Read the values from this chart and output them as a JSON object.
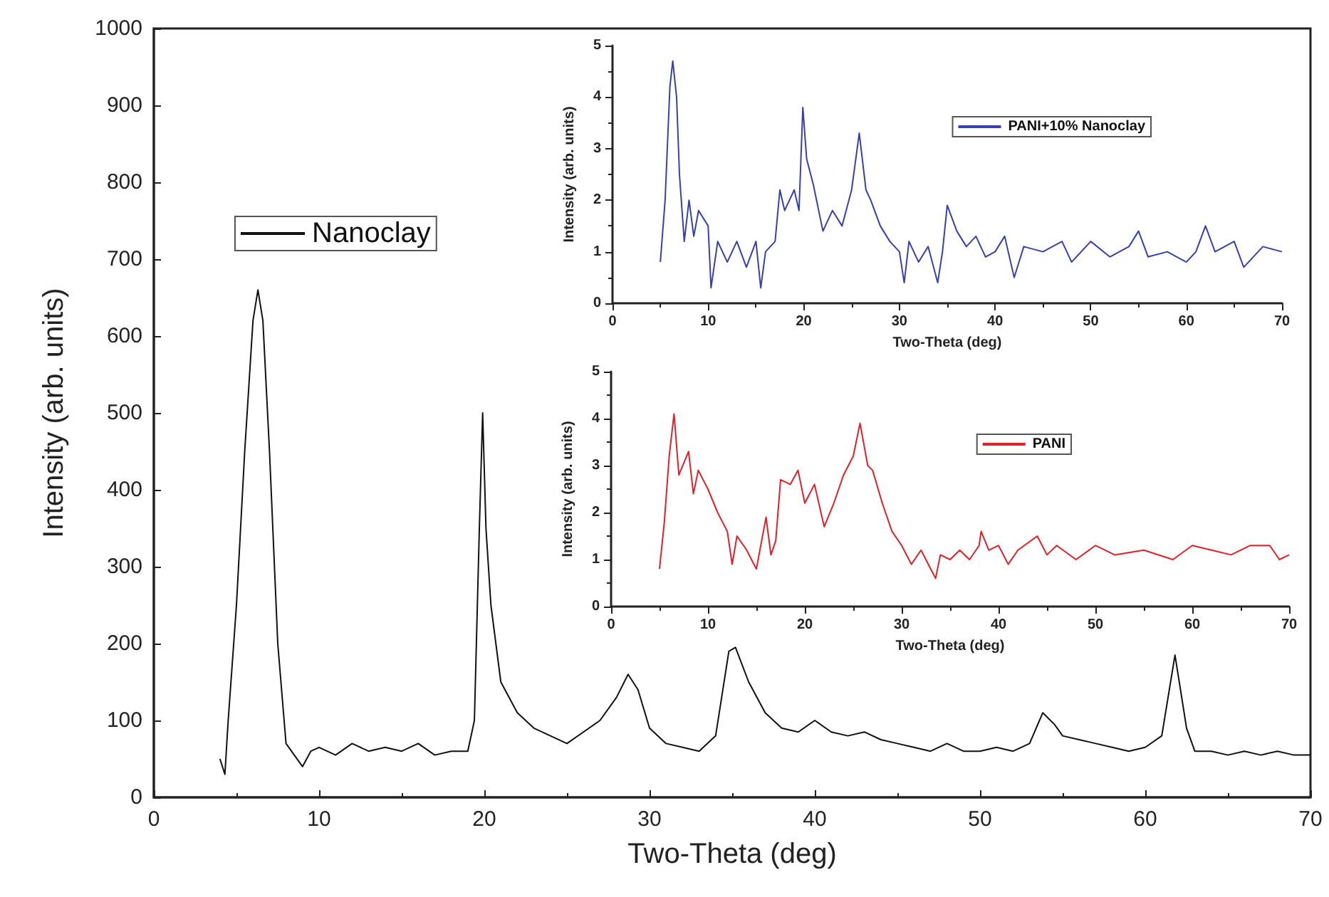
{
  "chart_data": [
    {
      "type": "line",
      "xlabel": "Two-Theta (deg)",
      "ylabel": "Intensity (arb. units)",
      "xlim": [
        0,
        70
      ],
      "ylim": [
        0,
        1000
      ],
      "xticks": [
        0,
        10,
        20,
        30,
        40,
        50,
        60,
        70
      ],
      "yticks": [
        0,
        100,
        200,
        300,
        400,
        500,
        600,
        700,
        800,
        900,
        1000
      ],
      "legend": "top left",
      "grid": false,
      "x": [
        4,
        4.3,
        4.5,
        5,
        5.5,
        6,
        6.3,
        6.6,
        7,
        7.5,
        8,
        8.5,
        9,
        9.5,
        10,
        11,
        12,
        13,
        14,
        15,
        16,
        17,
        18,
        19,
        19.4,
        19.7,
        19.9,
        20.1,
        20.4,
        21,
        22,
        23,
        24,
        25,
        26,
        27,
        28,
        28.7,
        29.3,
        30,
        31,
        32,
        33,
        34,
        34.8,
        35.2,
        36,
        37,
        38,
        39,
        40,
        41,
        42,
        43,
        44,
        45,
        46,
        47,
        48,
        49,
        50,
        51,
        52,
        53,
        53.8,
        54.5,
        55,
        56,
        57,
        58,
        59,
        60,
        61,
        61.8,
        62.5,
        63,
        64,
        65,
        66,
        67,
        68,
        69,
        70
      ],
      "series": [
        {
          "name": "Nanoclay",
          "color": "#111111",
          "values": [
            50,
            30,
            100,
            250,
            450,
            620,
            660,
            620,
            450,
            200,
            70,
            55,
            40,
            60,
            65,
            55,
            70,
            60,
            65,
            60,
            70,
            55,
            60,
            60,
            100,
            350,
            500,
            350,
            250,
            150,
            110,
            90,
            80,
            70,
            85,
            100,
            130,
            160,
            140,
            90,
            70,
            65,
            60,
            80,
            190,
            195,
            150,
            110,
            90,
            85,
            100,
            85,
            80,
            85,
            75,
            70,
            65,
            60,
            70,
            60,
            60,
            65,
            60,
            70,
            110,
            95,
            80,
            75,
            70,
            65,
            60,
            65,
            80,
            185,
            90,
            60,
            60,
            55,
            60,
            55,
            60,
            55,
            55
          ]
        }
      ]
    },
    {
      "type": "line",
      "xlabel": "Two-Theta (deg)",
      "ylabel": "Intensity (arb. units)",
      "xlim": [
        0,
        70
      ],
      "ylim": [
        0,
        5
      ],
      "xticks": [
        0,
        10,
        20,
        30,
        40,
        50,
        60,
        70
      ],
      "yticks": [
        0,
        1,
        2,
        3,
        4,
        5
      ],
      "legend": "top right",
      "grid": false,
      "x": [
        5,
        5.5,
        6,
        6.3,
        6.7,
        7,
        7.5,
        8,
        8.5,
        9,
        10,
        10.3,
        11,
        12,
        13,
        14,
        15,
        15.5,
        16,
        17,
        17.5,
        18,
        19,
        19.5,
        19.9,
        20.3,
        21,
        22,
        23,
        24,
        25,
        25.8,
        26.5,
        27,
        28,
        29,
        30,
        30.5,
        31,
        32,
        33,
        34,
        34.5,
        35,
        36,
        37,
        38,
        39,
        40,
        41,
        42,
        43,
        45,
        47,
        48,
        50,
        52,
        54,
        55,
        56,
        58,
        60,
        61,
        62,
        63,
        65,
        66,
        68,
        70
      ],
      "series": [
        {
          "name": "PANI+10% Nanoclay",
          "color": "#3a3fb0",
          "values": [
            0.8,
            2,
            4.2,
            4.7,
            4,
            2.5,
            1.2,
            2,
            1.3,
            1.8,
            1.5,
            0.3,
            1.2,
            0.8,
            1.2,
            0.7,
            1.2,
            0.3,
            1,
            1.2,
            2.2,
            1.8,
            2.2,
            1.8,
            3.8,
            2.8,
            2.3,
            1.4,
            1.8,
            1.5,
            2.2,
            3.3,
            2.2,
            2,
            1.5,
            1.2,
            1,
            0.4,
            1.2,
            0.8,
            1.1,
            0.4,
            1,
            1.9,
            1.4,
            1.1,
            1.3,
            0.9,
            1,
            1.3,
            0.5,
            1.1,
            1,
            1.2,
            0.8,
            1.2,
            0.9,
            1.1,
            1.4,
            0.9,
            1,
            0.8,
            1,
            1.5,
            1,
            1.2,
            0.7,
            1.1,
            1
          ]
        }
      ]
    },
    {
      "type": "line",
      "xlabel": "Two-Theta (deg)",
      "ylabel": "Intensity (arb. units)",
      "xlim": [
        0,
        70
      ],
      "ylim": [
        0,
        5
      ],
      "xticks": [
        0,
        10,
        20,
        30,
        40,
        50,
        60,
        70
      ],
      "yticks": [
        0,
        1,
        2,
        3,
        4,
        5
      ],
      "legend": "top right",
      "grid": false,
      "x": [
        5,
        5.5,
        6,
        6.5,
        7,
        8,
        8.5,
        9,
        10,
        11,
        12,
        12.5,
        13,
        14,
        15,
        16,
        16.5,
        17,
        17.5,
        18.5,
        19.3,
        20,
        21,
        22,
        23,
        24,
        25,
        25.7,
        26.5,
        27,
        28,
        29,
        30,
        31,
        32,
        33,
        33.5,
        34,
        35,
        36,
        37,
        38,
        38.2,
        39,
        40,
        41,
        42,
        44,
        45,
        46,
        48,
        50,
        52,
        55,
        58,
        60,
        62,
        64,
        66,
        68,
        69,
        70
      ],
      "series": [
        {
          "name": "PANI",
          "color": "#e0202a",
          "values": [
            0.8,
            1.8,
            3.2,
            4.1,
            2.8,
            3.3,
            2.4,
            2.9,
            2.5,
            2,
            1.6,
            0.9,
            1.5,
            1.2,
            0.8,
            1.9,
            1.1,
            1.4,
            2.7,
            2.6,
            2.9,
            2.2,
            2.6,
            1.7,
            2.2,
            2.8,
            3.2,
            3.9,
            3,
            2.9,
            2.2,
            1.6,
            1.3,
            0.9,
            1.2,
            0.8,
            0.6,
            1.1,
            1,
            1.2,
            1,
            1.3,
            1.6,
            1.2,
            1.3,
            0.9,
            1.2,
            1.5,
            1.1,
            1.3,
            1,
            1.3,
            1.1,
            1.2,
            1,
            1.3,
            1.2,
            1.1,
            1.3,
            1.3,
            1,
            1.1
          ]
        }
      ]
    }
  ]
}
